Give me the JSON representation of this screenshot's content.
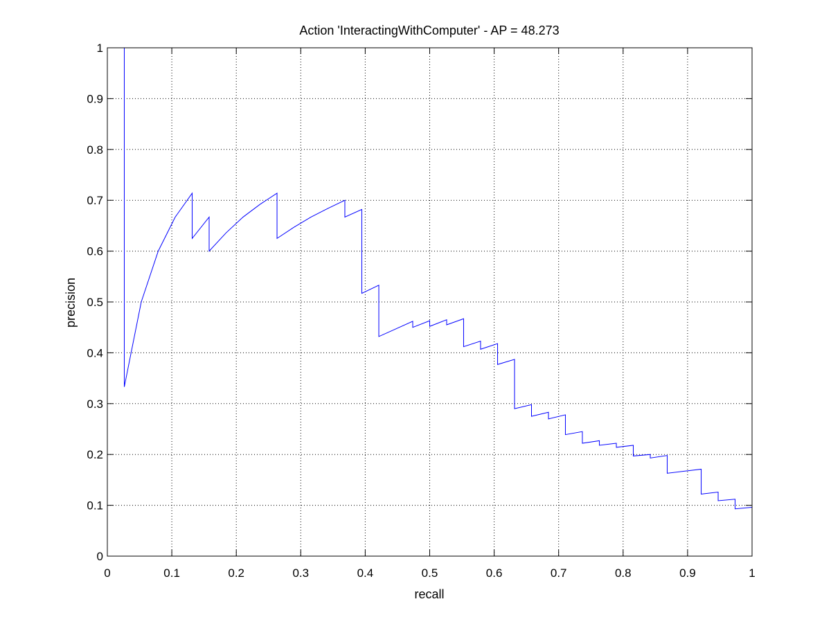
{
  "chart_data": {
    "type": "line",
    "title": "Action 'InteractingWithComputer' - AP = 48.273",
    "xlabel": "recall",
    "ylabel": "precision",
    "xlim": [
      0,
      1
    ],
    "ylim": [
      0,
      1
    ],
    "grid": true,
    "line_color": "#0000ff",
    "xticks": [
      "0",
      "0.1",
      "0.2",
      "0.3",
      "0.4",
      "0.5",
      "0.6",
      "0.7",
      "0.8",
      "0.9",
      "1"
    ],
    "yticks": [
      "0",
      "0.1",
      "0.2",
      "0.3",
      "0.4",
      "0.5",
      "0.6",
      "0.7",
      "0.8",
      "0.9",
      "1"
    ],
    "series": [
      {
        "x": [
          0.0263,
          0.0263,
          0.0526,
          0.0789,
          0.1053,
          0.1316,
          0.1316,
          0.1579,
          0.1579,
          0.1842,
          0.2105,
          0.2368,
          0.2632,
          0.2632,
          0.2895,
          0.3158,
          0.3421,
          0.3684,
          0.3684,
          0.3947,
          0.3947,
          0.4211,
          0.4211,
          0.4474,
          0.4737,
          0.4737,
          0.5,
          0.5,
          0.5263,
          0.5263,
          0.5526,
          0.5526,
          0.5789,
          0.5789,
          0.6053,
          0.6053,
          0.6316,
          0.6316,
          0.6579,
          0.6579,
          0.6842,
          0.6842,
          0.7105,
          0.7105,
          0.7368,
          0.7368,
          0.7632,
          0.7632,
          0.7895,
          0.7895,
          0.8158,
          0.8158,
          0.8421,
          0.8421,
          0.8684,
          0.8684,
          0.8947,
          0.9211,
          0.9211,
          0.9474,
          0.9474,
          0.9737,
          0.9737,
          1.0
        ],
        "y": [
          1.0,
          0.333,
          0.5,
          0.6,
          0.667,
          0.714,
          0.625,
          0.667,
          0.6,
          0.636,
          0.667,
          0.692,
          0.714,
          0.625,
          0.647,
          0.667,
          0.684,
          0.7,
          0.667,
          0.682,
          0.517,
          0.533,
          0.432,
          0.447,
          0.462,
          0.45,
          0.463,
          0.452,
          0.465,
          0.455,
          0.467,
          0.412,
          0.423,
          0.407,
          0.418,
          0.377,
          0.387,
          0.29,
          0.298,
          0.275,
          0.283,
          0.27,
          0.278,
          0.239,
          0.245,
          0.222,
          0.227,
          0.218,
          0.222,
          0.214,
          0.218,
          0.197,
          0.2,
          0.193,
          0.198,
          0.163,
          0.167,
          0.171,
          0.122,
          0.126,
          0.109,
          0.112,
          0.093,
          0.096
        ]
      }
    ]
  }
}
